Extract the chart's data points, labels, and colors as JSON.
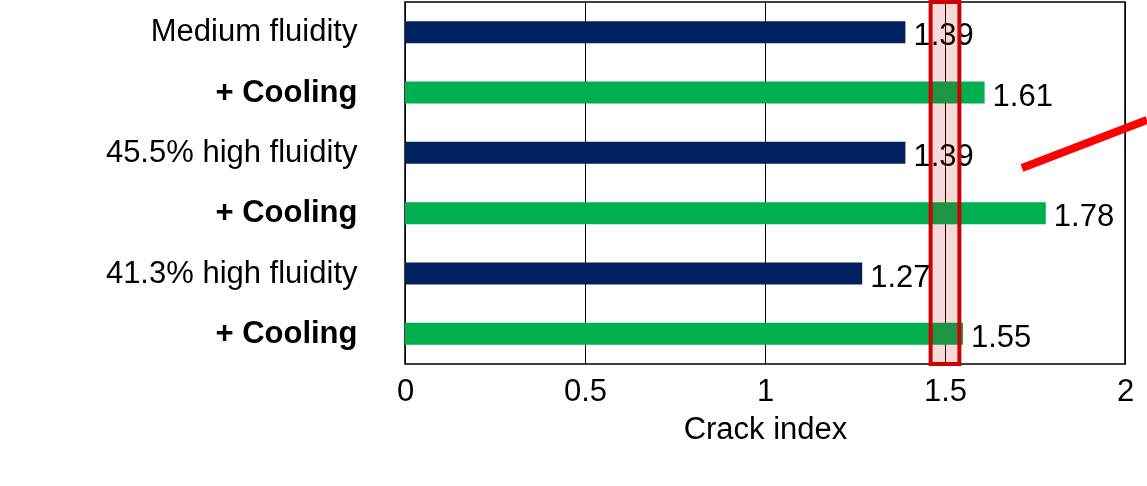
{
  "chart_data": {
    "type": "bar",
    "orientation": "horizontal",
    "xlabel": "Crack index",
    "categories": [
      "Medium fluidity",
      "+ Cooling",
      "45.5% high fluidity",
      "+ Cooling",
      "41.3% high fluidity",
      "+ Cooling"
    ],
    "values": [
      1.39,
      1.61,
      1.39,
      1.78,
      1.27,
      1.55
    ],
    "colors": [
      "#002060",
      "#00b050",
      "#002060",
      "#00b050",
      "#002060",
      "#00b050"
    ],
    "xlim": [
      0,
      2
    ],
    "xticks": [
      0,
      0.5,
      1,
      1.5,
      2
    ],
    "grid": "x",
    "data_labels": true,
    "bands": [
      {
        "axis": "x",
        "from": 1.46,
        "to": 1.54,
        "color": "#cc0000"
      }
    ]
  }
}
